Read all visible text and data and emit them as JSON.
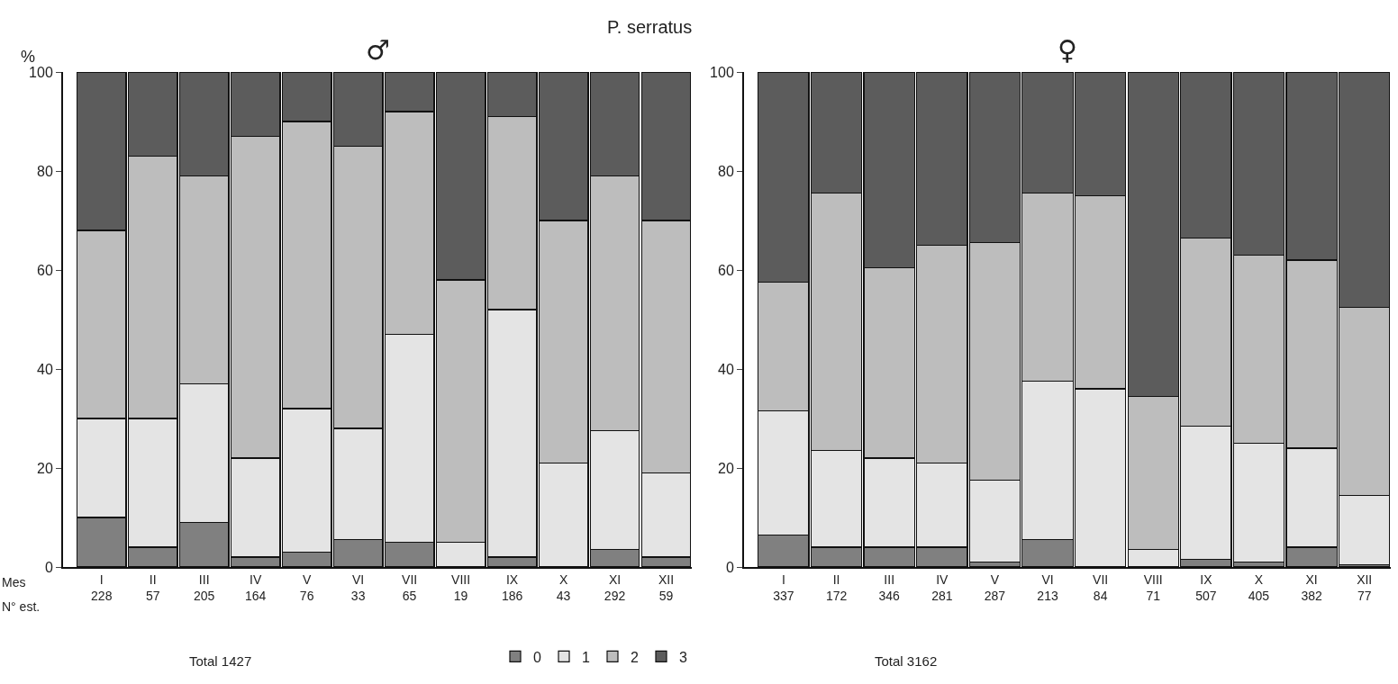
{
  "chart_data": [
    {
      "type": "bar",
      "title": "P. serratus",
      "subtitle": "♂",
      "ylabel": "%",
      "stacked": true,
      "ylim": [
        0,
        100
      ],
      "yticks": [
        0,
        20,
        40,
        60,
        80,
        100
      ],
      "legend": "bottom right",
      "categories": [
        "I\n228",
        "II\n57",
        "III\n205",
        "IV\n164",
        "V\n76",
        "VI\n33",
        "VII\n65",
        "VIII\n19",
        "IX\n186",
        "X\n43",
        "XI\n292",
        "XII\n59"
      ],
      "annotations": [
        "Mes",
        "N° est.",
        "Total 1427"
      ],
      "series": [
        {
          "name": "0",
          "color": "#808080",
          "values": [
            10,
            4,
            9,
            2,
            3,
            5.5,
            5,
            0,
            2,
            0,
            3.5,
            2
          ]
        },
        {
          "name": "1",
          "color": "#e4e4e4",
          "values": [
            20,
            26,
            28,
            20,
            29,
            22.5,
            42,
            5,
            50,
            21,
            24,
            17
          ]
        },
        {
          "name": "2",
          "color": "#bdbdbd",
          "values": [
            38,
            53,
            42,
            65,
            58,
            57,
            45,
            53,
            39,
            49,
            51.5,
            51
          ]
        },
        {
          "name": "3",
          "color": "#5c5c5c",
          "values": [
            32,
            17,
            21,
            13,
            10,
            15,
            8,
            42,
            9,
            30,
            21,
            30
          ]
        }
      ]
    },
    {
      "type": "bar",
      "subtitle": "♀",
      "stacked": true,
      "ylim": [
        0,
        100
      ],
      "yticks": [
        0,
        20,
        40,
        60,
        80,
        100
      ],
      "categories": [
        "I\n337",
        "II\n172",
        "III\n346",
        "IV\n281",
        "V\n287",
        "VI\n213",
        "VII\n84",
        "VIII\n71",
        "IX\n507",
        "X\n405",
        "XI\n382",
        "XII\n77"
      ],
      "annotations": [
        "Total 3162"
      ],
      "series": [
        {
          "color": "#808080",
          "values": [
            6.5,
            4,
            4,
            4,
            1,
            5.5,
            0,
            0,
            1.5,
            1,
            4,
            0.5
          ]
        },
        {
          "color": "#e4e4e4",
          "values": [
            25,
            19.5,
            18,
            17,
            16.5,
            32,
            36,
            3.5,
            27,
            24,
            20,
            14
          ]
        },
        {
          "color": "#bdbdbd",
          "values": [
            26,
            52,
            38.5,
            44,
            48,
            38,
            39,
            31,
            38,
            38,
            38,
            38
          ]
        },
        {
          "color": "#5c5c5c",
          "values": [
            42.5,
            24.5,
            39.5,
            35,
            34.5,
            24.5,
            25,
            65.5,
            33.5,
            37,
            38,
            47.5
          ]
        }
      ]
    }
  ]
}
